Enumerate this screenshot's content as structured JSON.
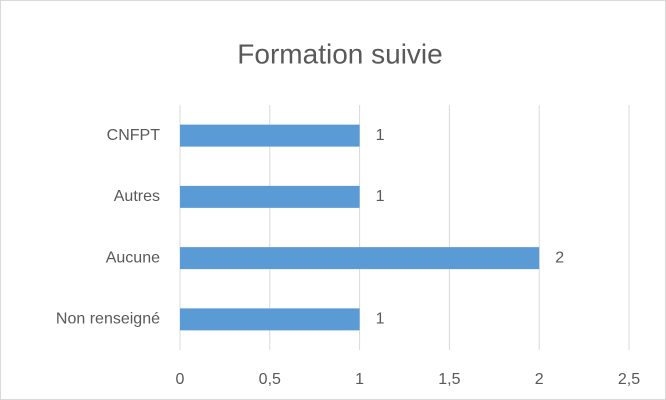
{
  "chart_data": {
    "type": "barh",
    "title": "Formation suivie",
    "categories": [
      "CNFPT",
      "Autres",
      "Aucune",
      "Non renseigné"
    ],
    "values": [
      1,
      1,
      2,
      1
    ],
    "color": "#5b9bd5",
    "xlim": [
      0,
      2.5
    ],
    "xticks": [
      0,
      {
        "value": 0.5,
        "label": "0,5"
      },
      1,
      {
        "value": 1.5,
        "label": "1,5"
      },
      2,
      {
        "value": 2.5,
        "label": "2,5"
      }
    ],
    "grid": true
  }
}
